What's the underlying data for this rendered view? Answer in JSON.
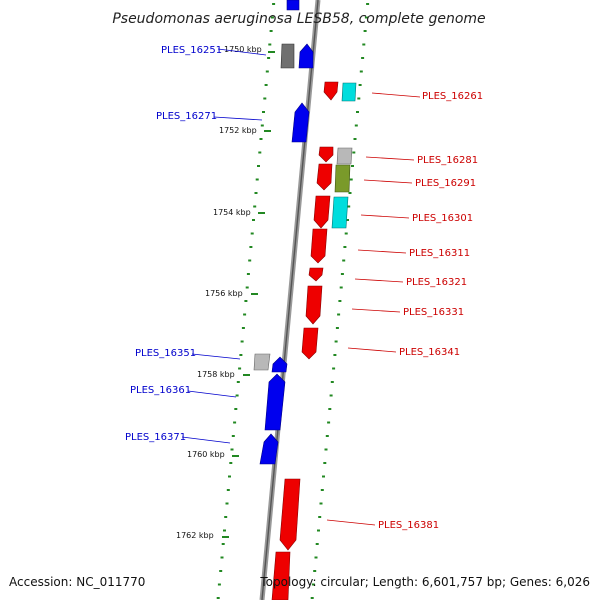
{
  "title": "Pseudomonas aeruginosa LESB58, complete genome",
  "footer": {
    "accession": "Accession: NC_011770",
    "topology": "Topology: circular; Length: 6,601,757 bp; Genes: 6,026"
  },
  "colors": {
    "forward": "#0000ee",
    "reverse": "#ee0000",
    "cyan": "#00dddd",
    "olive": "#7a9a2a",
    "gray": "#b8b8b8",
    "darkgray": "#707070",
    "tick": "#228822",
    "backbone": "#888888"
  },
  "kbp_marks": [
    "1750 kbp",
    "1752 kbp",
    "1754 kbp",
    "1756 kbp",
    "1758 kbp",
    "1760 kbp",
    "1762 kbp"
  ],
  "genes_left": [
    {
      "id": "PLES_16251"
    },
    {
      "id": "PLES_16271"
    },
    {
      "id": "PLES_16351"
    },
    {
      "id": "PLES_16361"
    },
    {
      "id": "PLES_16371"
    }
  ],
  "genes_right": [
    {
      "id": "PLES_16261"
    },
    {
      "id": "PLES_16281"
    },
    {
      "id": "PLES_16291"
    },
    {
      "id": "PLES_16301"
    },
    {
      "id": "PLES_16311"
    },
    {
      "id": "PLES_16321"
    },
    {
      "id": "PLES_16331"
    },
    {
      "id": "PLES_16341"
    },
    {
      "id": "PLES_16381"
    }
  ]
}
